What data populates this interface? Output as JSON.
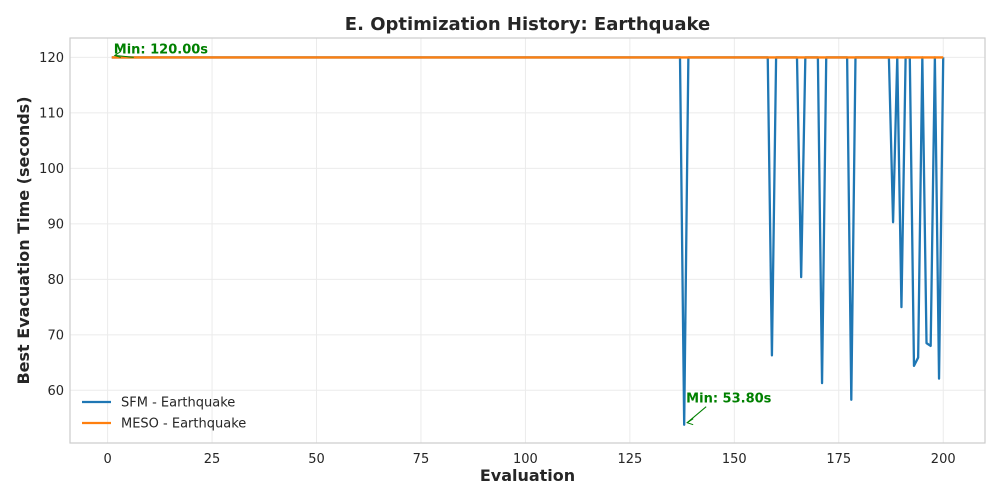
{
  "chart_data": {
    "type": "line",
    "title": "E. Optimization History: Earthquake",
    "xlabel": "Evaluation",
    "ylabel": "Best Evacuation Time (seconds)",
    "xlim": [
      -9,
      210
    ],
    "ylim": [
      50.5,
      123.5
    ],
    "xticks": [
      0,
      25,
      50,
      75,
      100,
      125,
      150,
      175,
      200
    ],
    "yticks": [
      60,
      70,
      80,
      90,
      100,
      110,
      120
    ],
    "grid": true,
    "legend_position": "bottom-left",
    "series": [
      {
        "name": "SFM - Earthquake",
        "color": "#1f77b4",
        "points": [
          [
            1,
            120
          ],
          [
            137,
            120
          ],
          [
            138,
            53.8
          ],
          [
            139,
            120
          ],
          [
            158,
            120
          ],
          [
            159,
            66.3
          ],
          [
            160,
            120
          ],
          [
            165,
            120
          ],
          [
            166,
            80.4
          ],
          [
            167,
            120
          ],
          [
            170,
            120
          ],
          [
            171,
            61.3
          ],
          [
            172,
            120
          ],
          [
            177,
            120
          ],
          [
            178,
            58.3
          ],
          [
            179,
            120
          ],
          [
            187,
            120
          ],
          [
            188,
            90.3
          ],
          [
            189,
            120
          ],
          [
            190,
            75
          ],
          [
            191,
            120
          ],
          [
            192,
            120
          ],
          [
            193,
            64.4
          ],
          [
            194,
            65.9
          ],
          [
            195,
            120
          ],
          [
            196,
            68.5
          ],
          [
            197,
            68
          ],
          [
            198,
            120
          ],
          [
            199,
            62.1
          ],
          [
            200,
            120
          ]
        ]
      },
      {
        "name": "MESO - Earthquake",
        "color": "#ff7f0e",
        "points": [
          [
            1,
            120
          ],
          [
            200,
            120
          ]
        ]
      }
    ],
    "annotations": [
      {
        "text": "Min: 120.00s",
        "x": 1,
        "y": 120,
        "color": "#008000",
        "anchor": "upper-right"
      },
      {
        "text": "Min: 53.80s",
        "x": 138,
        "y": 53.8,
        "color": "#008000",
        "anchor": "upper-right"
      }
    ]
  }
}
